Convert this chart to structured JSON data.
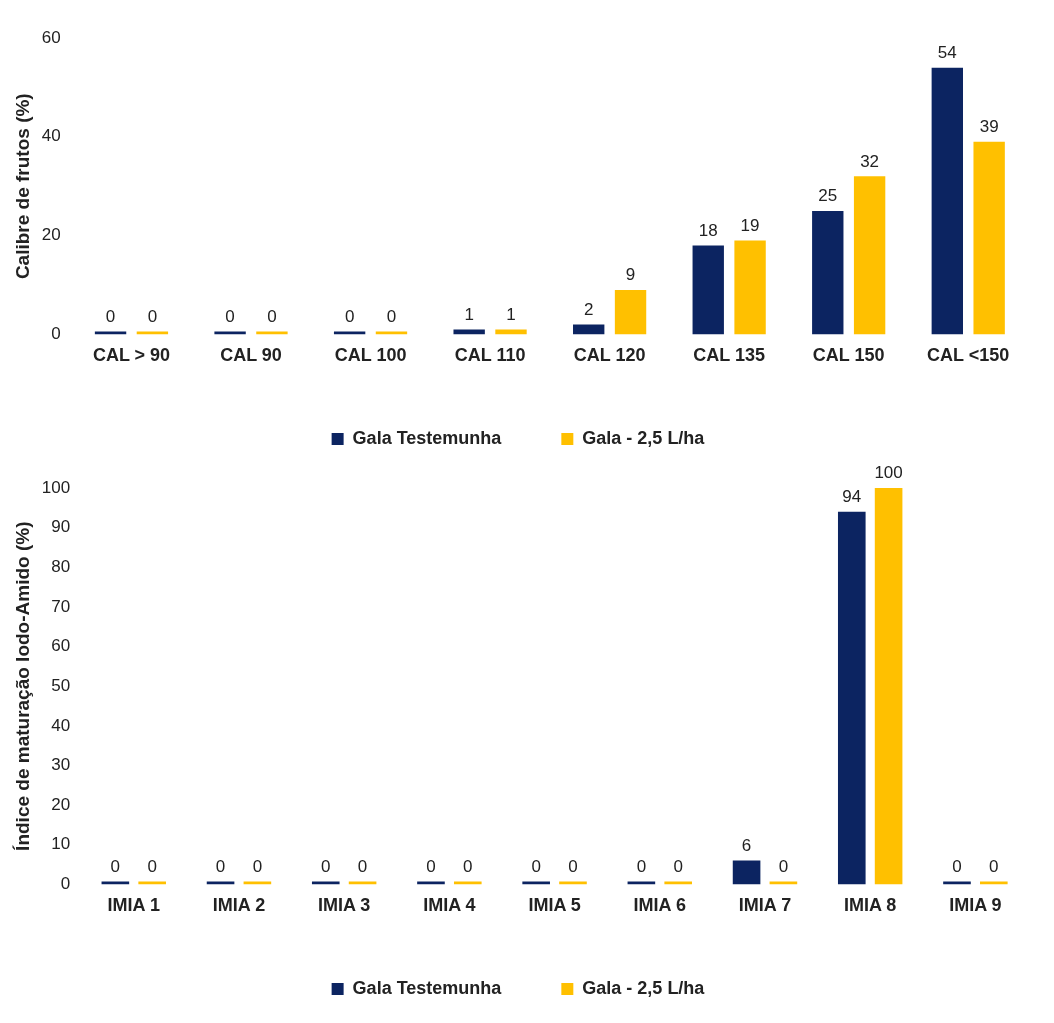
{
  "chart_data": [
    {
      "type": "bar",
      "ylabel": "Calibre de frutos (%)",
      "categories": [
        "CAL > 90",
        "CAL 90",
        "CAL 100",
        "CAL 110",
        "CAL 120",
        "CAL 135",
        "CAL 150",
        "CAL <150"
      ],
      "series": [
        {
          "name": "Gala Testemunha",
          "color": "#0c2461",
          "values": [
            0,
            0,
            0,
            1,
            2,
            18,
            25,
            54
          ]
        },
        {
          "name": "Gala - 2,5 L/ha",
          "color": "#ffc000",
          "values": [
            0,
            0,
            0,
            1,
            9,
            19,
            32,
            39
          ]
        }
      ],
      "ylim": [
        0,
        60
      ],
      "yticks": [
        0,
        20,
        40,
        60
      ],
      "grid": false,
      "legend": "bottom",
      "data_labels": true
    },
    {
      "type": "bar",
      "ylabel": "Índice de maturação Iodo-Amido (%)",
      "categories": [
        "IMIA 1",
        "IMIA 2",
        "IMIA 3",
        "IMIA 4",
        "IMIA 5",
        "IMIA 6",
        "IMIA 7",
        "IMIA 8",
        "IMIA 9"
      ],
      "series": [
        {
          "name": "Gala Testemunha",
          "color": "#0c2461",
          "values": [
            0,
            0,
            0,
            0,
            0,
            0,
            6,
            94,
            0
          ]
        },
        {
          "name": "Gala - 2,5 L/ha",
          "color": "#ffc000",
          "values": [
            0,
            0,
            0,
            0,
            0,
            0,
            0,
            100,
            0
          ]
        }
      ],
      "ylim": [
        0,
        100
      ],
      "yticks": [
        0,
        10,
        20,
        30,
        40,
        50,
        60,
        70,
        80,
        90,
        100
      ],
      "grid": false,
      "legend": "bottom",
      "data_labels": true
    }
  ]
}
